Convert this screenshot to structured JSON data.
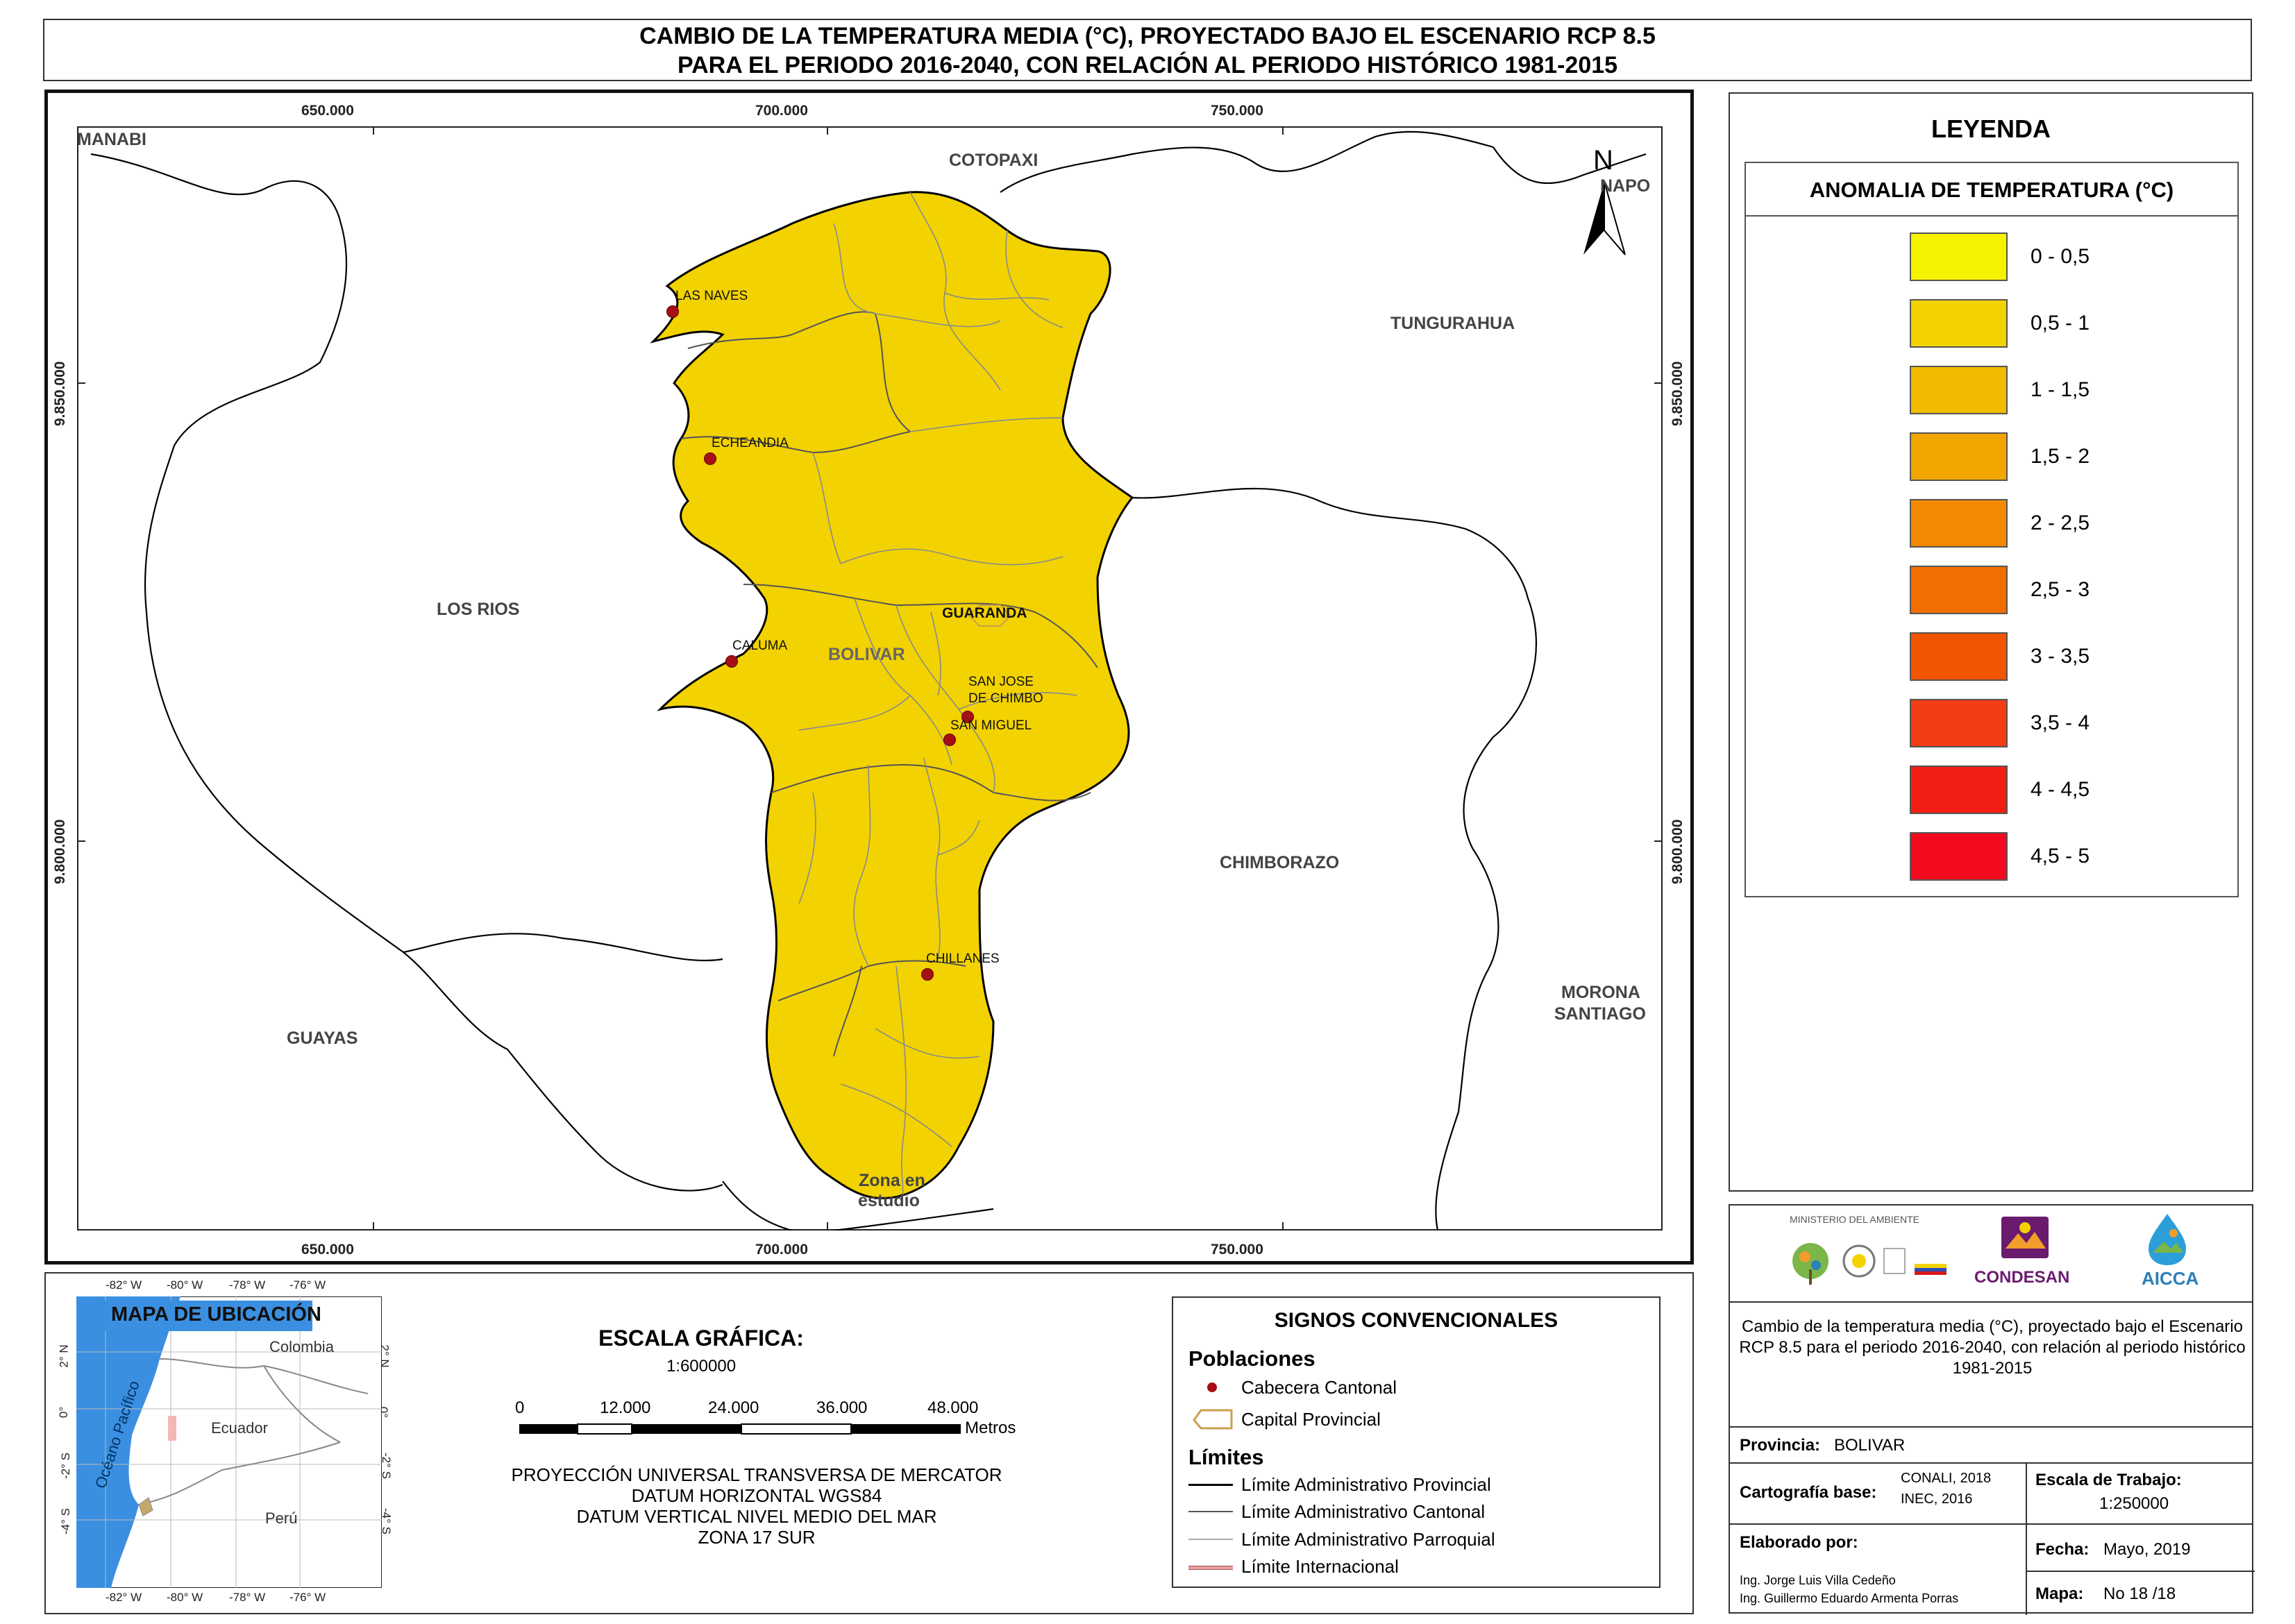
{
  "title": {
    "line1": "CAMBIO DE LA TEMPERATURA MEDIA (°C),  PROYECTADO BAJO EL ESCENARIO RCP 8.5",
    "line2": "PARA EL PERIODO 2016-2040, CON RELACIÓN AL PERIODO HISTÓRICO 1981-2015"
  },
  "map": {
    "easting_labels": [
      "650.000",
      "700.000",
      "750.000"
    ],
    "northing_labels": [
      "9.850.000",
      "9.800.000"
    ],
    "north_label": "N",
    "provinces": [
      "MANABI",
      "COTOPAXI",
      "NAPO",
      "TUNGURAHUA",
      "LOS RIOS",
      "BOLIVAR",
      "CHIMBORAZO",
      "GUAYAS",
      "MORONA",
      "SANTIAGO"
    ],
    "study_zone": [
      "Zona en",
      "estudio"
    ],
    "capital": "GUARANDA",
    "towns": [
      "LAS NAVES",
      "ECHEANDIA",
      "CALUMA",
      "SAN JOSE",
      "DE CHIMBO",
      "SAN MIGUEL",
      "CHILLANES"
    ],
    "fill_color": "#f2d200",
    "outline_color": "#000000"
  },
  "legend": {
    "title": "LEYENDA",
    "subtitle": "ANOMALIA DE TEMPERATURA (°C)",
    "classes": [
      {
        "label": "0 - 0,5",
        "color": "#f7f200"
      },
      {
        "label": "0,5 - 1",
        "color": "#f2d200"
      },
      {
        "label": "1 - 1,5",
        "color": "#f2bb00"
      },
      {
        "label": "1,5 - 2",
        "color": "#f2a600"
      },
      {
        "label": "2 - 2,5",
        "color": "#f28900"
      },
      {
        "label": "2,5 - 3",
        "color": "#f26e00"
      },
      {
        "label": "3 - 3,5",
        "color": "#f25400"
      },
      {
        "label": "3,5 - 4",
        "color": "#f23c14"
      },
      {
        "label": "4 - 4,5",
        "color": "#f21e14"
      },
      {
        "label": "4,5 - 5",
        "color": "#f20a1e"
      }
    ]
  },
  "logos": {
    "ministerio": "MINISTERIO DEL AMBIENTE",
    "condesan": "CONDESAN",
    "aicca": "AICCA"
  },
  "info": {
    "description": "Cambio de la temperatura media (°C),  proyectado bajo el Escenario RCP 8.5 para el periodo 2016-2040, con relación al periodo histórico 1981-2015",
    "provincia_label": "Provincia:",
    "provincia_value": "BOLIVAR",
    "cartografia_label": "Cartografía base:",
    "cartografia_value1": "CONALI, 2018",
    "cartografia_value2": "INEC, 2016",
    "escala_label": "Escala de Trabajo:",
    "escala_value": "1:250000",
    "elaborado_label": "Elaborado por:",
    "elaborado_1": "Ing. Jorge Luis Villa Cedeño",
    "elaborado_2": "Ing. Guillermo Eduardo Armenta Porras",
    "fecha_label": "Fecha:",
    "fecha_value": "Mayo, 2019",
    "mapa_label": "Mapa:",
    "mapa_value": "No 18 /18"
  },
  "location_map": {
    "title": "MAPA DE UBICACIÓN",
    "lon_labels": [
      "-82° W",
      "-80° W",
      "-78° W",
      "-76° W"
    ],
    "lat_labels": [
      "2° N",
      "0°",
      "-2° S",
      "-4° S"
    ],
    "countries": [
      "Colombia",
      "Ecuador",
      "Perú"
    ],
    "ocean": "Océano Pacífico"
  },
  "scale": {
    "title": "ESCALA GRÁFICA:",
    "ratio": "1:600000",
    "ticks": [
      "0",
      "12.000",
      "24.000",
      "36.000",
      "48.000"
    ],
    "unit": "Metros",
    "projection": [
      "PROYECCIÓN UNIVERSAL TRANSVERSA DE MERCATOR",
      "DATUM HORIZONTAL WGS84",
      "DATUM VERTICAL NIVEL MEDIO DEL MAR",
      "ZONA 17 SUR"
    ]
  },
  "signs": {
    "title": "SIGNOS CONVENCIONALES",
    "poblaciones": "Poblaciones",
    "cabecera": "Cabecera Cantonal",
    "capital": "Capital Provincial",
    "limites": "Límites",
    "provincial": "Límite Administrativo Provincial",
    "cantonal": "Límite Administrativo Cantonal",
    "parroquial": "Límite Administrativo Parroquial",
    "internacional": "Límite Internacional"
  }
}
